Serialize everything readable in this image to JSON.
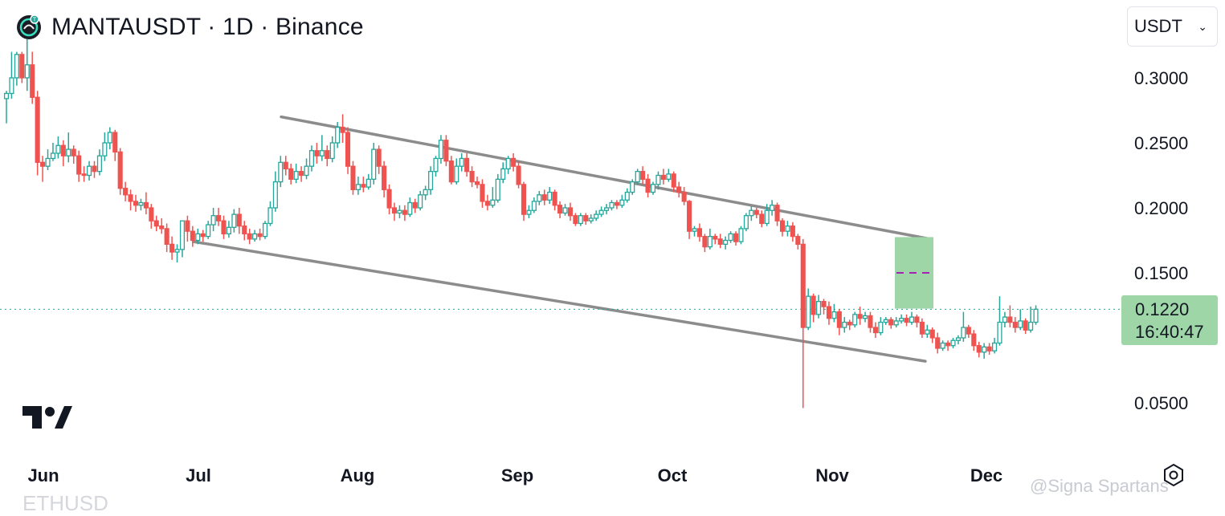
{
  "header": {
    "title": "MANTAUSDT · 1D · Binance",
    "logo_icon": "manta-coin-icon"
  },
  "currency_select": {
    "value": "USDT",
    "icon": "chevron-down-icon"
  },
  "price_label": {
    "value": "0.1220",
    "countdown": "16:40:47"
  },
  "watermark": "@Signa  Spartans",
  "next_symbol": "ETHUSD",
  "colors": {
    "up": "#26a69a",
    "down": "#ef5350",
    "channel": "#8c8c8c",
    "target_zone": "#9fd6a8",
    "target_dash": "#9c27b0",
    "last_price_line": "#26a69a"
  },
  "chart_data": {
    "type": "candlestick",
    "symbol": "MANTAUSDT",
    "interval": "1D",
    "exchange": "Binance",
    "y_ticks": [
      "0.3000",
      "0.2500",
      "0.2000",
      "0.1500",
      "0.0500"
    ],
    "x_ticks": [
      "Jun",
      "Jul",
      "Aug",
      "Sep",
      "Oct",
      "Nov",
      "Dec"
    ],
    "last_price": 0.122,
    "channel": {
      "upper": [
        [
          "Jul 17",
          0.27
        ],
        [
          "Nov 20",
          0.176
        ]
      ],
      "lower": [
        [
          "Jun 30",
          0.174
        ],
        [
          "Nov 19",
          0.082
        ]
      ]
    },
    "target_zone": {
      "low": 0.1225,
      "high": 0.1775,
      "mid": 0.15
    },
    "candles": [
      [
        0.284,
        0.288,
        0.265,
        0.29
      ],
      [
        0.288,
        0.3,
        0.284,
        0.32
      ],
      [
        0.3,
        0.318,
        0.294,
        0.32
      ],
      [
        0.318,
        0.3,
        0.296,
        0.32
      ],
      [
        0.3,
        0.31,
        0.29,
        0.33
      ],
      [
        0.31,
        0.285,
        0.28,
        0.32
      ],
      [
        0.285,
        0.235,
        0.225,
        0.29
      ],
      [
        0.235,
        0.232,
        0.22,
        0.24
      ],
      [
        0.232,
        0.238,
        0.229,
        0.245
      ],
      [
        0.238,
        0.242,
        0.236,
        0.25
      ],
      [
        0.242,
        0.248,
        0.238,
        0.255
      ],
      [
        0.248,
        0.24,
        0.232,
        0.252
      ],
      [
        0.24,
        0.245,
        0.235,
        0.258
      ],
      [
        0.245,
        0.24,
        0.234,
        0.248
      ],
      [
        0.24,
        0.226,
        0.22,
        0.244
      ],
      [
        0.226,
        0.225,
        0.22,
        0.232
      ],
      [
        0.225,
        0.232,
        0.221,
        0.236
      ],
      [
        0.232,
        0.228,
        0.223,
        0.236
      ],
      [
        0.228,
        0.24,
        0.225,
        0.245
      ],
      [
        0.24,
        0.25,
        0.236,
        0.258
      ],
      [
        0.25,
        0.258,
        0.245,
        0.262
      ],
      [
        0.258,
        0.243,
        0.236,
        0.26
      ],
      [
        0.243,
        0.215,
        0.21,
        0.246
      ],
      [
        0.215,
        0.21,
        0.205,
        0.22
      ],
      [
        0.21,
        0.205,
        0.198,
        0.214
      ],
      [
        0.205,
        0.202,
        0.197,
        0.21
      ],
      [
        0.202,
        0.204,
        0.198,
        0.207
      ],
      [
        0.204,
        0.2,
        0.195,
        0.212
      ],
      [
        0.2,
        0.19,
        0.184,
        0.203
      ],
      [
        0.19,
        0.186,
        0.182,
        0.194
      ],
      [
        0.186,
        0.184,
        0.18,
        0.192
      ],
      [
        0.184,
        0.172,
        0.166,
        0.188
      ],
      [
        0.172,
        0.166,
        0.16,
        0.178
      ],
      [
        0.166,
        0.168,
        0.158,
        0.172
      ],
      [
        0.168,
        0.19,
        0.162,
        0.19
      ],
      [
        0.19,
        0.182,
        0.174,
        0.194
      ],
      [
        0.182,
        0.175,
        0.17,
        0.186
      ],
      [
        0.175,
        0.18,
        0.172,
        0.184
      ],
      [
        0.18,
        0.178,
        0.174,
        0.183
      ],
      [
        0.178,
        0.187,
        0.176,
        0.19
      ],
      [
        0.187,
        0.194,
        0.182,
        0.2
      ],
      [
        0.194,
        0.19,
        0.186,
        0.2
      ],
      [
        0.19,
        0.18,
        0.176,
        0.194
      ],
      [
        0.18,
        0.185,
        0.177,
        0.19
      ],
      [
        0.185,
        0.195,
        0.181,
        0.199
      ],
      [
        0.195,
        0.186,
        0.18,
        0.2
      ],
      [
        0.186,
        0.18,
        0.175,
        0.19
      ],
      [
        0.18,
        0.176,
        0.172,
        0.184
      ],
      [
        0.176,
        0.18,
        0.174,
        0.183
      ],
      [
        0.18,
        0.178,
        0.175,
        0.184
      ],
      [
        0.178,
        0.188,
        0.176,
        0.19
      ],
      [
        0.188,
        0.2,
        0.186,
        0.205
      ],
      [
        0.2,
        0.22,
        0.197,
        0.228
      ],
      [
        0.22,
        0.235,
        0.216,
        0.24
      ],
      [
        0.235,
        0.23,
        0.225,
        0.24
      ],
      [
        0.23,
        0.222,
        0.218,
        0.234
      ],
      [
        0.222,
        0.228,
        0.219,
        0.234
      ],
      [
        0.228,
        0.225,
        0.22,
        0.232
      ],
      [
        0.225,
        0.232,
        0.222,
        0.238
      ],
      [
        0.232,
        0.244,
        0.228,
        0.248
      ],
      [
        0.244,
        0.24,
        0.234,
        0.25
      ],
      [
        0.24,
        0.244,
        0.236,
        0.256
      ],
      [
        0.244,
        0.238,
        0.232,
        0.248
      ],
      [
        0.238,
        0.25,
        0.235,
        0.255
      ],
      [
        0.25,
        0.262,
        0.246,
        0.266
      ],
      [
        0.262,
        0.258,
        0.25,
        0.272
      ],
      [
        0.258,
        0.232,
        0.226,
        0.262
      ],
      [
        0.232,
        0.214,
        0.21,
        0.236
      ],
      [
        0.214,
        0.218,
        0.21,
        0.224
      ],
      [
        0.218,
        0.216,
        0.212,
        0.224
      ],
      [
        0.216,
        0.222,
        0.214,
        0.226
      ],
      [
        0.222,
        0.245,
        0.218,
        0.25
      ],
      [
        0.245,
        0.232,
        0.226,
        0.248
      ],
      [
        0.232,
        0.214,
        0.208,
        0.236
      ],
      [
        0.214,
        0.2,
        0.195,
        0.218
      ],
      [
        0.2,
        0.196,
        0.19,
        0.204
      ],
      [
        0.196,
        0.198,
        0.192,
        0.202
      ],
      [
        0.198,
        0.195,
        0.19,
        0.202
      ],
      [
        0.195,
        0.204,
        0.193,
        0.208
      ],
      [
        0.204,
        0.2,
        0.196,
        0.207
      ],
      [
        0.2,
        0.21,
        0.198,
        0.213
      ],
      [
        0.21,
        0.214,
        0.206,
        0.217
      ],
      [
        0.214,
        0.228,
        0.21,
        0.232
      ],
      [
        0.228,
        0.238,
        0.224,
        0.24
      ],
      [
        0.238,
        0.252,
        0.234,
        0.256
      ],
      [
        0.252,
        0.236,
        0.232,
        0.256
      ],
      [
        0.236,
        0.22,
        0.218,
        0.24
      ],
      [
        0.22,
        0.232,
        0.218,
        0.238
      ],
      [
        0.232,
        0.238,
        0.228,
        0.242
      ],
      [
        0.238,
        0.228,
        0.224,
        0.242
      ],
      [
        0.228,
        0.22,
        0.216,
        0.232
      ],
      [
        0.22,
        0.218,
        0.215,
        0.224
      ],
      [
        0.218,
        0.205,
        0.2,
        0.222
      ],
      [
        0.205,
        0.202,
        0.198,
        0.21
      ],
      [
        0.202,
        0.206,
        0.2,
        0.216
      ],
      [
        0.206,
        0.222,
        0.204,
        0.226
      ],
      [
        0.222,
        0.23,
        0.219,
        0.235
      ],
      [
        0.23,
        0.238,
        0.226,
        0.24
      ],
      [
        0.238,
        0.232,
        0.228,
        0.242
      ],
      [
        0.232,
        0.218,
        0.215,
        0.236
      ],
      [
        0.218,
        0.195,
        0.19,
        0.22
      ],
      [
        0.195,
        0.198,
        0.192,
        0.202
      ],
      [
        0.198,
        0.205,
        0.196,
        0.208
      ],
      [
        0.205,
        0.21,
        0.202,
        0.213
      ],
      [
        0.21,
        0.206,
        0.202,
        0.214
      ],
      [
        0.206,
        0.212,
        0.203,
        0.216
      ],
      [
        0.212,
        0.202,
        0.198,
        0.214
      ],
      [
        0.202,
        0.196,
        0.192,
        0.205
      ],
      [
        0.196,
        0.2,
        0.194,
        0.203
      ],
      [
        0.2,
        0.194,
        0.19,
        0.204
      ],
      [
        0.194,
        0.188,
        0.186,
        0.196
      ],
      [
        0.188,
        0.194,
        0.186,
        0.196
      ],
      [
        0.194,
        0.19,
        0.187,
        0.196
      ],
      [
        0.19,
        0.192,
        0.188,
        0.195
      ],
      [
        0.192,
        0.195,
        0.19,
        0.198
      ],
      [
        0.195,
        0.198,
        0.193,
        0.201
      ],
      [
        0.198,
        0.2,
        0.195,
        0.203
      ],
      [
        0.2,
        0.204,
        0.198,
        0.206
      ],
      [
        0.204,
        0.202,
        0.199,
        0.206
      ],
      [
        0.202,
        0.206,
        0.2,
        0.21
      ],
      [
        0.206,
        0.212,
        0.204,
        0.215
      ],
      [
        0.212,
        0.22,
        0.21,
        0.222
      ],
      [
        0.22,
        0.228,
        0.218,
        0.23
      ],
      [
        0.228,
        0.222,
        0.218,
        0.232
      ],
      [
        0.222,
        0.212,
        0.208,
        0.226
      ],
      [
        0.212,
        0.218,
        0.21,
        0.22
      ],
      [
        0.218,
        0.225,
        0.214,
        0.228
      ],
      [
        0.225,
        0.222,
        0.218,
        0.23
      ],
      [
        0.222,
        0.226,
        0.22,
        0.23
      ],
      [
        0.226,
        0.216,
        0.212,
        0.228
      ],
      [
        0.216,
        0.212,
        0.208,
        0.22
      ],
      [
        0.212,
        0.205,
        0.202,
        0.216
      ],
      [
        0.205,
        0.182,
        0.176,
        0.206
      ],
      [
        0.182,
        0.184,
        0.178,
        0.186
      ],
      [
        0.184,
        0.178,
        0.174,
        0.188
      ],
      [
        0.178,
        0.17,
        0.166,
        0.18
      ],
      [
        0.17,
        0.178,
        0.168,
        0.184
      ],
      [
        0.178,
        0.176,
        0.172,
        0.18
      ],
      [
        0.176,
        0.172,
        0.169,
        0.18
      ],
      [
        0.172,
        0.175,
        0.168,
        0.178
      ],
      [
        0.175,
        0.18,
        0.173,
        0.182
      ],
      [
        0.18,
        0.174,
        0.171,
        0.182
      ],
      [
        0.174,
        0.184,
        0.172,
        0.186
      ],
      [
        0.184,
        0.194,
        0.182,
        0.196
      ],
      [
        0.194,
        0.198,
        0.19,
        0.201
      ],
      [
        0.198,
        0.195,
        0.192,
        0.2
      ],
      [
        0.195,
        0.188,
        0.185,
        0.198
      ],
      [
        0.188,
        0.198,
        0.186,
        0.203
      ],
      [
        0.198,
        0.202,
        0.194,
        0.206
      ],
      [
        0.202,
        0.19,
        0.186,
        0.204
      ],
      [
        0.19,
        0.182,
        0.178,
        0.192
      ],
      [
        0.182,
        0.186,
        0.178,
        0.19
      ],
      [
        0.186,
        0.178,
        0.174,
        0.189
      ],
      [
        0.178,
        0.172,
        0.168,
        0.18
      ],
      [
        0.172,
        0.108,
        0.046,
        0.176
      ],
      [
        0.108,
        0.132,
        0.106,
        0.138
      ],
      [
        0.132,
        0.118,
        0.112,
        0.134
      ],
      [
        0.118,
        0.128,
        0.115,
        0.133
      ],
      [
        0.128,
        0.124,
        0.118,
        0.13
      ],
      [
        0.124,
        0.115,
        0.11,
        0.128
      ],
      [
        0.115,
        0.12,
        0.112,
        0.126
      ],
      [
        0.12,
        0.108,
        0.102,
        0.122
      ],
      [
        0.108,
        0.112,
        0.104,
        0.116
      ],
      [
        0.112,
        0.11,
        0.106,
        0.114
      ],
      [
        0.11,
        0.118,
        0.108,
        0.12
      ],
      [
        0.118,
        0.115,
        0.11,
        0.124
      ],
      [
        0.115,
        0.117,
        0.112,
        0.12
      ],
      [
        0.117,
        0.108,
        0.104,
        0.12
      ],
      [
        0.108,
        0.104,
        0.1,
        0.112
      ],
      [
        0.104,
        0.112,
        0.102,
        0.116
      ],
      [
        0.112,
        0.114,
        0.11,
        0.116
      ],
      [
        0.114,
        0.11,
        0.107,
        0.116
      ],
      [
        0.11,
        0.113,
        0.108,
        0.116
      ],
      [
        0.113,
        0.115,
        0.111,
        0.118
      ],
      [
        0.115,
        0.112,
        0.109,
        0.118
      ],
      [
        0.112,
        0.116,
        0.11,
        0.12
      ],
      [
        0.116,
        0.112,
        0.108,
        0.118
      ],
      [
        0.112,
        0.103,
        0.1,
        0.115
      ],
      [
        0.103,
        0.106,
        0.1,
        0.11
      ],
      [
        0.106,
        0.1,
        0.096,
        0.108
      ],
      [
        0.1,
        0.092,
        0.088,
        0.104
      ],
      [
        0.092,
        0.096,
        0.09,
        0.098
      ],
      [
        0.096,
        0.094,
        0.09,
        0.098
      ],
      [
        0.094,
        0.098,
        0.092,
        0.1
      ],
      [
        0.098,
        0.1,
        0.095,
        0.102
      ],
      [
        0.1,
        0.108,
        0.097,
        0.12
      ],
      [
        0.108,
        0.103,
        0.1,
        0.11
      ],
      [
        0.103,
        0.094,
        0.09,
        0.106
      ],
      [
        0.094,
        0.089,
        0.085,
        0.097
      ],
      [
        0.089,
        0.093,
        0.084,
        0.096
      ],
      [
        0.093,
        0.09,
        0.087,
        0.096
      ],
      [
        0.09,
        0.096,
        0.088,
        0.1
      ],
      [
        0.096,
        0.112,
        0.094,
        0.132
      ],
      [
        0.112,
        0.116,
        0.108,
        0.12
      ],
      [
        0.116,
        0.112,
        0.108,
        0.125
      ],
      [
        0.112,
        0.108,
        0.104,
        0.116
      ],
      [
        0.108,
        0.113,
        0.106,
        0.122
      ],
      [
        0.113,
        0.106,
        0.103,
        0.115
      ],
      [
        0.106,
        0.112,
        0.104,
        0.124
      ],
      [
        0.112,
        0.122,
        0.11,
        0.125
      ]
    ]
  }
}
